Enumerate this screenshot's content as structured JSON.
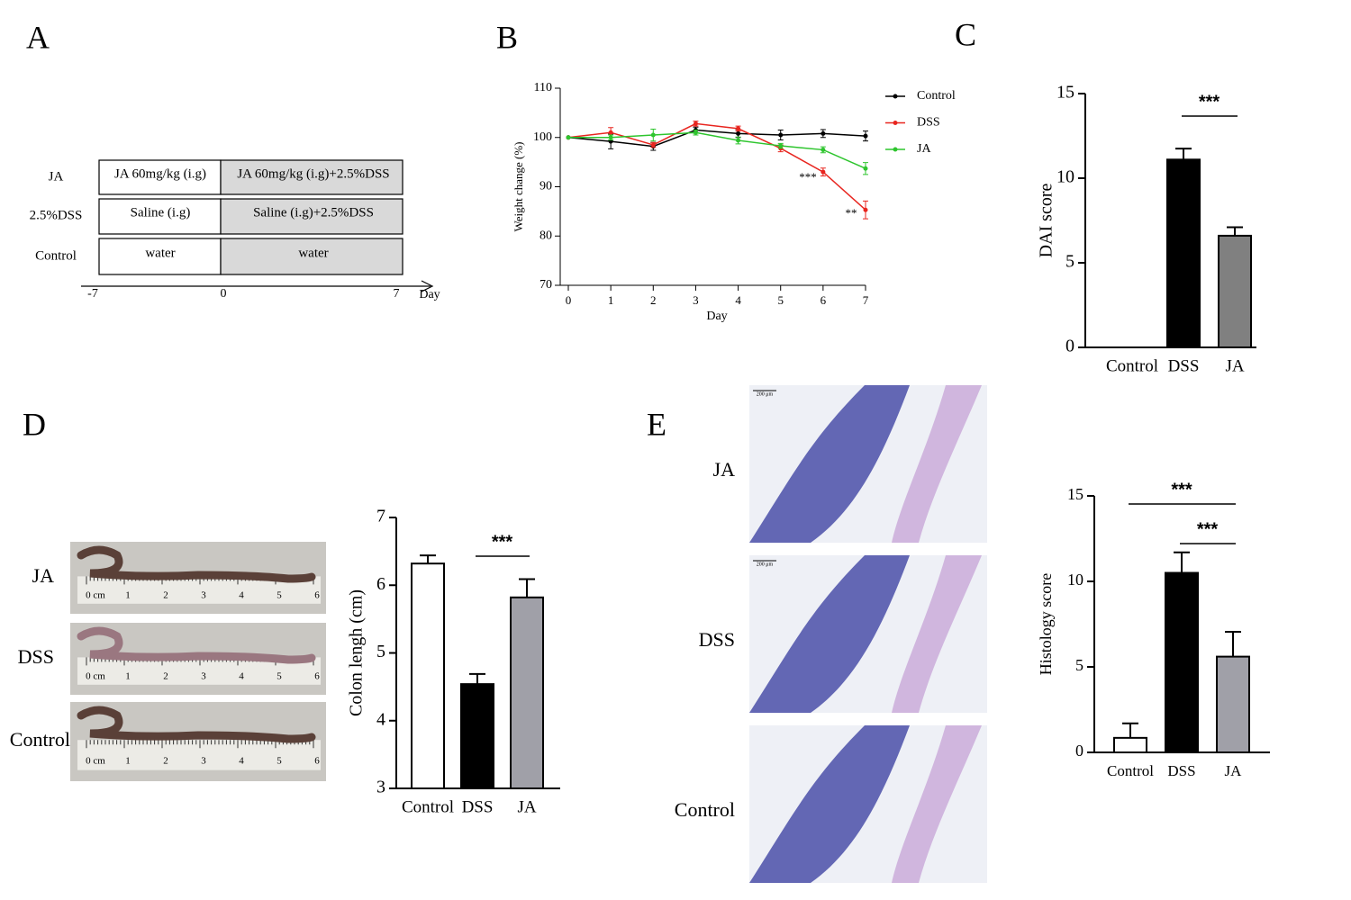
{
  "panel_labels": [
    "A",
    "B",
    "C",
    "D",
    "E"
  ],
  "diagram": {
    "rows": [
      {
        "label": "JA",
        "pre": "JA 60mg/kg (i.g)",
        "post": "JA 60mg/kg (i.g)+2.5%DSS"
      },
      {
        "label": "2.5%DSS",
        "pre": "Saline (i.g)",
        "post": "Saline (i.g)+2.5%DSS"
      },
      {
        "label": "Control",
        "pre": "water",
        "post": "water"
      }
    ],
    "axis_labels": [
      "-7",
      "0",
      "7"
    ],
    "axis_title": "Day"
  },
  "chart_data": [
    {
      "type": "line",
      "x": [
        0,
        1,
        2,
        3,
        4,
        5,
        6,
        7
      ],
      "xlim": [
        0,
        7
      ],
      "xticks": [
        0,
        1,
        2,
        3,
        4,
        5,
        6,
        7
      ],
      "ylim": [
        70,
        110
      ],
      "yticks": [
        70,
        80,
        90,
        100,
        110
      ],
      "xlabel": "Day",
      "ylabel": "Weight change (%)",
      "legend": "right",
      "annotations": [
        "***",
        "**"
      ],
      "series": [
        {
          "name": "Control",
          "color": "#000000",
          "values": [
            100,
            99.2,
            98.2,
            101.5,
            100.8,
            100.5,
            100.8,
            100.3
          ],
          "errors": [
            0,
            1.5,
            0.8,
            0.6,
            0.8,
            1,
            0.8,
            1
          ]
        },
        {
          "name": "DSS",
          "color": "#e8251f",
          "values": [
            100,
            101,
            98.5,
            102.8,
            101.8,
            97.8,
            93,
            85.3
          ],
          "errors": [
            0,
            1,
            0.5,
            0.5,
            0.5,
            0.7,
            0.8,
            1.8
          ]
        },
        {
          "name": "JA",
          "color": "#2ec52e",
          "values": [
            100,
            100,
            100.5,
            101,
            99.4,
            98.3,
            97.5,
            93.7
          ],
          "errors": [
            0,
            0.5,
            1.2,
            0.5,
            0.7,
            0.5,
            0.6,
            1.2
          ]
        }
      ]
    },
    {
      "type": "bar",
      "categories": [
        "Control",
        "DSS",
        "JA"
      ],
      "values": [
        0,
        11.1,
        6.6
      ],
      "errors": [
        0,
        0.65,
        0.5
      ],
      "colors": [
        "#ffffff",
        "#000000",
        "#808080"
      ],
      "ylim": [
        0,
        15
      ],
      "yticks": [
        0,
        5,
        10,
        15
      ],
      "ylabel": "DAI score",
      "comparisons": [
        {
          "groups": [
            "DSS",
            "JA"
          ],
          "label": "***"
        }
      ]
    },
    {
      "type": "bar",
      "categories": [
        "Control",
        "DSS",
        "JA"
      ],
      "values": [
        6.32,
        4.54,
        5.82
      ],
      "errors": [
        0.12,
        0.15,
        0.27
      ],
      "colors": [
        "#ffffff",
        "#000000",
        "#a0a0a8"
      ],
      "ylim": [
        3,
        7
      ],
      "yticks": [
        3,
        4,
        5,
        6,
        7
      ],
      "ylabel": "Colon lengh (cm)",
      "comparisons": [
        {
          "groups": [
            "DSS",
            "JA"
          ],
          "label": "***"
        }
      ]
    },
    {
      "type": "bar",
      "categories": [
        "Control",
        "DSS",
        "JA"
      ],
      "values": [
        0.85,
        10.5,
        5.6
      ],
      "errors": [
        0.85,
        1.2,
        1.45
      ],
      "colors": [
        "#ffffff",
        "#000000",
        "#a0a0a8"
      ],
      "ylim": [
        0,
        15
      ],
      "yticks": [
        0,
        5,
        10,
        15
      ],
      "ylabel": "Histology score",
      "comparisons": [
        {
          "groups": [
            "Control",
            "JA"
          ],
          "label": "***"
        },
        {
          "groups": [
            "DSS",
            "JA"
          ],
          "label": "***"
        }
      ]
    }
  ],
  "photos": {
    "labels": [
      "JA",
      "DSS",
      "Control"
    ],
    "ruler_labels": [
      "0 cm",
      "1",
      "2",
      "3",
      "4",
      "5",
      "6"
    ]
  },
  "histology": {
    "labels": [
      "JA",
      "DSS",
      "Control"
    ],
    "scale_bar": "200 μm"
  }
}
